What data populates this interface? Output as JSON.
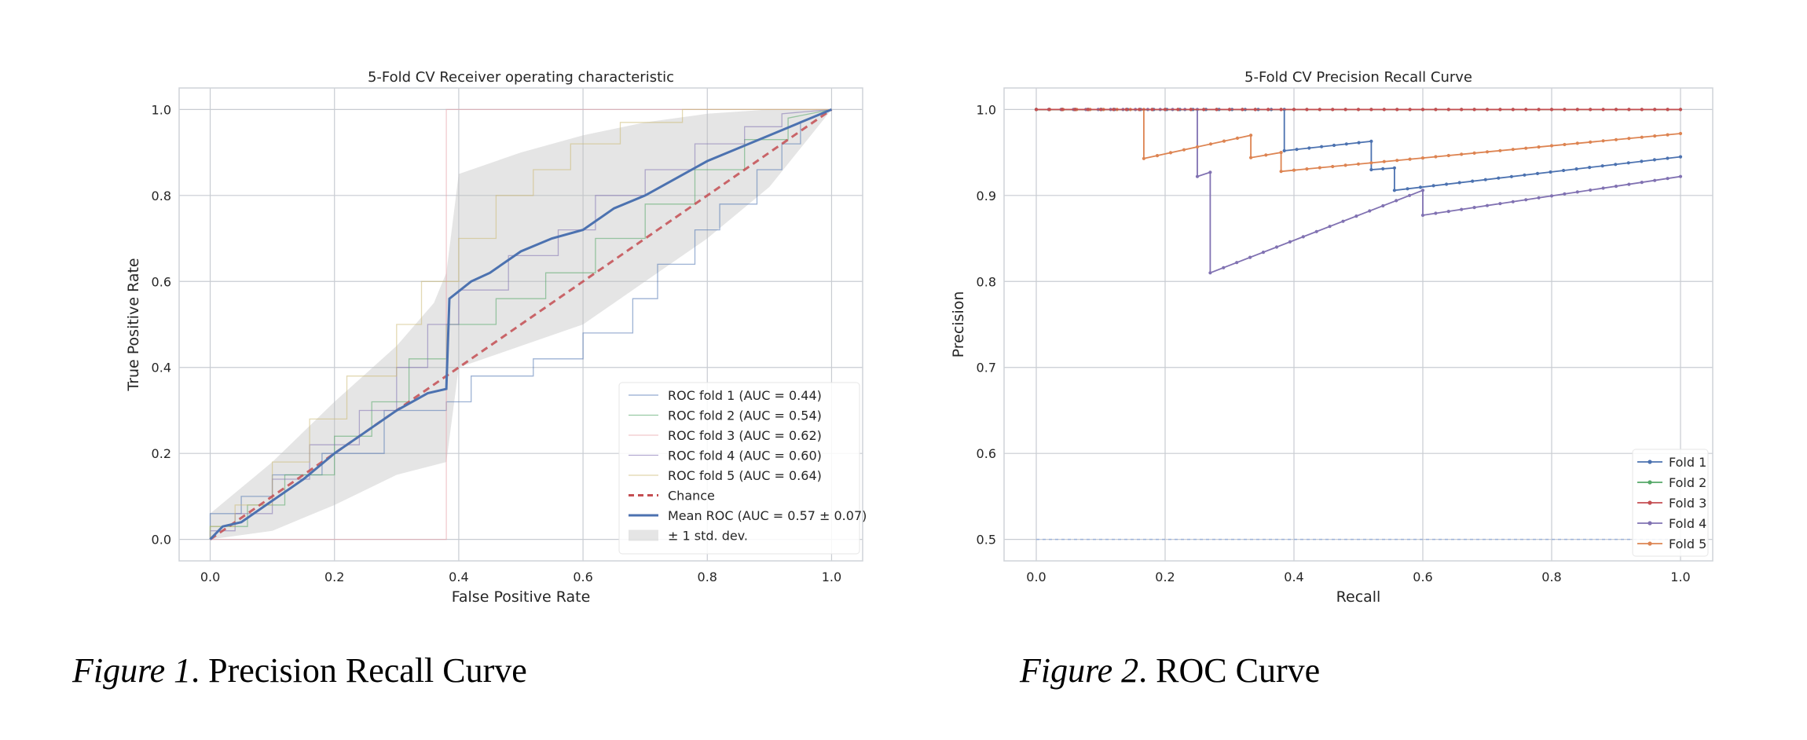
{
  "colors": {
    "blue": "#4c72b0",
    "green": "#55a868",
    "red": "#c44e52",
    "purple": "#8172b2",
    "orange": "#dd8452",
    "gold": "#ccb974",
    "pink": "#e8a0a8",
    "chance": "#c44e52",
    "band": "#bdbdbd",
    "grid": "#c8ccd2",
    "spine": "#cfd3d8"
  },
  "captions": {
    "fig1_label": "Figure 1",
    "fig1_text": ". Precision Recall Curve",
    "fig2_label": "Figure 2",
    "fig2_text": ". ROC Curve"
  },
  "chart_data": [
    {
      "type": "line",
      "title": "5-Fold CV Receiver operating characteristic",
      "xlabel": "False Positive Rate",
      "ylabel": "True Positive Rate",
      "xlim": [
        -0.05,
        1.05
      ],
      "ylim": [
        -0.05,
        1.05
      ],
      "xticks": [
        "0.0",
        "0.2",
        "0.4",
        "0.6",
        "0.8",
        "1.0"
      ],
      "yticks": [
        "0.0",
        "0.2",
        "0.4",
        "0.6",
        "0.8",
        "1.0"
      ],
      "grid": true,
      "legend": "lower-right",
      "series": [
        {
          "name": "ROC fold 1 (AUC = 0.44)",
          "color": "blue",
          "style": "thin-step",
          "points": [
            [
              0,
              0
            ],
            [
              0,
              0.06
            ],
            [
              0.05,
              0.06
            ],
            [
              0.05,
              0.1
            ],
            [
              0.1,
              0.1
            ],
            [
              0.1,
              0.15
            ],
            [
              0.18,
              0.15
            ],
            [
              0.18,
              0.2
            ],
            [
              0.28,
              0.2
            ],
            [
              0.28,
              0.3
            ],
            [
              0.38,
              0.3
            ],
            [
              0.38,
              0.32
            ],
            [
              0.42,
              0.32
            ],
            [
              0.42,
              0.38
            ],
            [
              0.52,
              0.38
            ],
            [
              0.52,
              0.42
            ],
            [
              0.6,
              0.42
            ],
            [
              0.6,
              0.48
            ],
            [
              0.68,
              0.48
            ],
            [
              0.68,
              0.56
            ],
            [
              0.72,
              0.56
            ],
            [
              0.72,
              0.64
            ],
            [
              0.78,
              0.64
            ],
            [
              0.78,
              0.72
            ],
            [
              0.82,
              0.72
            ],
            [
              0.82,
              0.78
            ],
            [
              0.88,
              0.78
            ],
            [
              0.88,
              0.86
            ],
            [
              0.92,
              0.86
            ],
            [
              0.92,
              0.92
            ],
            [
              0.95,
              0.92
            ],
            [
              0.95,
              0.97
            ],
            [
              1,
              1
            ]
          ]
        },
        {
          "name": "ROC fold 2 (AUC = 0.54)",
          "color": "green",
          "style": "thin-step",
          "points": [
            [
              0,
              0
            ],
            [
              0,
              0.03
            ],
            [
              0.06,
              0.03
            ],
            [
              0.06,
              0.08
            ],
            [
              0.12,
              0.08
            ],
            [
              0.12,
              0.15
            ],
            [
              0.2,
              0.15
            ],
            [
              0.2,
              0.24
            ],
            [
              0.26,
              0.24
            ],
            [
              0.26,
              0.32
            ],
            [
              0.32,
              0.32
            ],
            [
              0.32,
              0.42
            ],
            [
              0.38,
              0.42
            ],
            [
              0.38,
              0.5
            ],
            [
              0.46,
              0.5
            ],
            [
              0.46,
              0.56
            ],
            [
              0.54,
              0.56
            ],
            [
              0.54,
              0.62
            ],
            [
              0.62,
              0.62
            ],
            [
              0.62,
              0.7
            ],
            [
              0.7,
              0.7
            ],
            [
              0.7,
              0.78
            ],
            [
              0.78,
              0.78
            ],
            [
              0.78,
              0.86
            ],
            [
              0.86,
              0.86
            ],
            [
              0.86,
              0.93
            ],
            [
              0.93,
              0.93
            ],
            [
              0.93,
              0.98
            ],
            [
              1,
              1
            ]
          ]
        },
        {
          "name": "ROC fold 3 (AUC = 0.62)",
          "color": "pink",
          "style": "thin-step",
          "points": [
            [
              0,
              0
            ],
            [
              0.38,
              0
            ],
            [
              0.38,
              1
            ],
            [
              1,
              1
            ]
          ]
        },
        {
          "name": "ROC fold 4 (AUC = 0.60)",
          "color": "purple",
          "style": "thin-step",
          "points": [
            [
              0,
              0
            ],
            [
              0,
              0.02
            ],
            [
              0.04,
              0.02
            ],
            [
              0.04,
              0.06
            ],
            [
              0.1,
              0.06
            ],
            [
              0.1,
              0.14
            ],
            [
              0.16,
              0.14
            ],
            [
              0.16,
              0.22
            ],
            [
              0.24,
              0.22
            ],
            [
              0.24,
              0.3
            ],
            [
              0.3,
              0.3
            ],
            [
              0.3,
              0.4
            ],
            [
              0.35,
              0.4
            ],
            [
              0.35,
              0.5
            ],
            [
              0.4,
              0.5
            ],
            [
              0.4,
              0.58
            ],
            [
              0.48,
              0.58
            ],
            [
              0.48,
              0.66
            ],
            [
              0.56,
              0.66
            ],
            [
              0.56,
              0.72
            ],
            [
              0.62,
              0.72
            ],
            [
              0.62,
              0.8
            ],
            [
              0.7,
              0.8
            ],
            [
              0.7,
              0.86
            ],
            [
              0.78,
              0.86
            ],
            [
              0.78,
              0.92
            ],
            [
              0.86,
              0.92
            ],
            [
              0.86,
              0.96
            ],
            [
              0.92,
              0.96
            ],
            [
              0.92,
              0.99
            ],
            [
              1,
              1
            ]
          ]
        },
        {
          "name": "ROC fold 5 (AUC = 0.64)",
          "color": "gold",
          "style": "thin-step",
          "points": [
            [
              0,
              0
            ],
            [
              0,
              0.03
            ],
            [
              0.04,
              0.03
            ],
            [
              0.04,
              0.08
            ],
            [
              0.1,
              0.08
            ],
            [
              0.1,
              0.18
            ],
            [
              0.16,
              0.18
            ],
            [
              0.16,
              0.28
            ],
            [
              0.22,
              0.28
            ],
            [
              0.22,
              0.38
            ],
            [
              0.3,
              0.38
            ],
            [
              0.3,
              0.5
            ],
            [
              0.34,
              0.5
            ],
            [
              0.34,
              0.6
            ],
            [
              0.4,
              0.6
            ],
            [
              0.4,
              0.7
            ],
            [
              0.46,
              0.7
            ],
            [
              0.46,
              0.8
            ],
            [
              0.52,
              0.8
            ],
            [
              0.52,
              0.86
            ],
            [
              0.58,
              0.86
            ],
            [
              0.58,
              0.92
            ],
            [
              0.66,
              0.92
            ],
            [
              0.66,
              0.97
            ],
            [
              0.76,
              0.97
            ],
            [
              0.76,
              1
            ],
            [
              1,
              1
            ]
          ]
        },
        {
          "name": "Chance",
          "color": "chance",
          "style": "dashed",
          "points": [
            [
              0,
              0
            ],
            [
              1,
              1
            ]
          ]
        },
        {
          "name": "Mean ROC (AUC = 0.57 ± 0.07)",
          "color": "blue",
          "style": "thick",
          "points": [
            [
              0,
              0
            ],
            [
              0.02,
              0.03
            ],
            [
              0.05,
              0.04
            ],
            [
              0.1,
              0.09
            ],
            [
              0.15,
              0.14
            ],
            [
              0.2,
              0.2
            ],
            [
              0.25,
              0.25
            ],
            [
              0.3,
              0.3
            ],
            [
              0.35,
              0.34
            ],
            [
              0.38,
              0.35
            ],
            [
              0.385,
              0.56
            ],
            [
              0.42,
              0.6
            ],
            [
              0.45,
              0.62
            ],
            [
              0.5,
              0.67
            ],
            [
              0.55,
              0.7
            ],
            [
              0.6,
              0.72
            ],
            [
              0.65,
              0.77
            ],
            [
              0.7,
              0.8
            ],
            [
              0.75,
              0.84
            ],
            [
              0.8,
              0.88
            ],
            [
              0.85,
              0.91
            ],
            [
              0.9,
              0.94
            ],
            [
              0.95,
              0.97
            ],
            [
              1,
              1
            ]
          ]
        },
        {
          "name": "± 1 std. dev.",
          "color": "band",
          "style": "band",
          "upper": [
            [
              0,
              0.06
            ],
            [
              0.1,
              0.18
            ],
            [
              0.2,
              0.32
            ],
            [
              0.3,
              0.45
            ],
            [
              0.36,
              0.55
            ],
            [
              0.38,
              0.62
            ],
            [
              0.4,
              0.85
            ],
            [
              0.5,
              0.9
            ],
            [
              0.6,
              0.94
            ],
            [
              0.7,
              0.97
            ],
            [
              0.8,
              0.99
            ],
            [
              0.9,
              1
            ],
            [
              1,
              1
            ]
          ],
          "lower": [
            [
              0,
              0
            ],
            [
              0.1,
              0.02
            ],
            [
              0.2,
              0.08
            ],
            [
              0.3,
              0.15
            ],
            [
              0.38,
              0.18
            ],
            [
              0.4,
              0.4
            ],
            [
              0.5,
              0.45
            ],
            [
              0.6,
              0.5
            ],
            [
              0.7,
              0.6
            ],
            [
              0.8,
              0.7
            ],
            [
              0.9,
              0.82
            ],
            [
              1,
              1
            ]
          ]
        }
      ]
    },
    {
      "type": "line",
      "title": "5-Fold CV Precision Recall Curve",
      "xlabel": "Recall",
      "ylabel": "Precision",
      "xlim": [
        -0.05,
        1.05
      ],
      "ylim": [
        0.475,
        1.025
      ],
      "xticks": [
        "0.0",
        "0.2",
        "0.4",
        "0.6",
        "0.8",
        "1.0"
      ],
      "yticks": [
        "0.5",
        "0.6",
        "0.7",
        "0.8",
        "0.9",
        "1.0"
      ],
      "grid": true,
      "legend": "lower-right",
      "baseline": {
        "y": 0.5,
        "color": "#9ab0d8"
      },
      "series": [
        {
          "name": "Fold 1",
          "color": "blue",
          "points": [
            [
              0,
              1
            ],
            [
              0.385,
              1
            ],
            [
              0.385,
              0.952
            ],
            [
              0.52,
              0.963
            ],
            [
              0.52,
              0.93
            ],
            [
              0.556,
              0.932
            ],
            [
              0.556,
              0.906
            ],
            [
              1,
              0.945
            ]
          ]
        },
        {
          "name": "Fold 2",
          "color": "green",
          "points": [
            [
              0,
              1
            ],
            [
              1,
              1
            ]
          ]
        },
        {
          "name": "Fold 3",
          "color": "red",
          "points": [
            [
              0,
              1
            ],
            [
              1,
              1
            ]
          ]
        },
        {
          "name": "Fold 4",
          "color": "purple",
          "points": [
            [
              0,
              1
            ],
            [
              0.25,
              1
            ],
            [
              0.25,
              0.922
            ],
            [
              0.27,
              0.927
            ],
            [
              0.27,
              0.81
            ],
            [
              0.6,
              0.906
            ],
            [
              0.6,
              0.877
            ],
            [
              1,
              0.922
            ]
          ]
        },
        {
          "name": "Fold 5",
          "color": "orange",
          "points": [
            [
              0,
              1
            ],
            [
              0.167,
              1
            ],
            [
              0.167,
              0.943
            ],
            [
              0.333,
              0.97
            ],
            [
              0.333,
              0.944
            ],
            [
              0.38,
              0.95
            ],
            [
              0.38,
              0.928
            ],
            [
              1,
              0.972
            ]
          ]
        }
      ]
    }
  ]
}
